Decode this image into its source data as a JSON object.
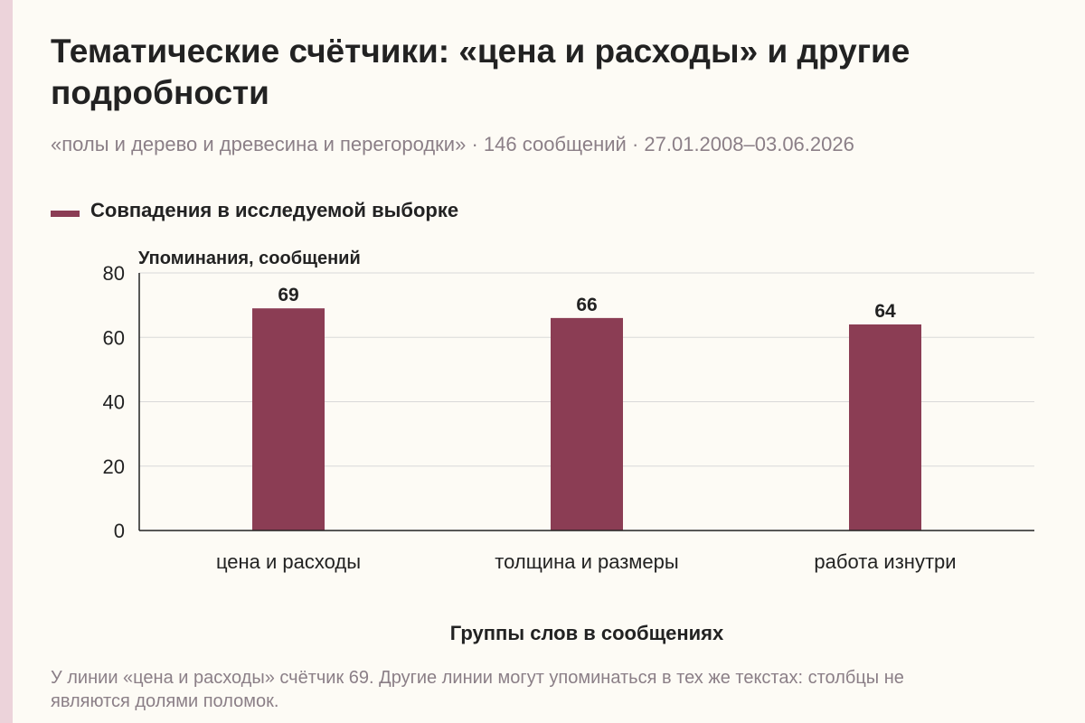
{
  "header": {
    "title": "Тематические счётчики: «цена и расходы» и другие подробности",
    "subtitle": "«полы и дерево и древесина и перегородки» · 146 сообщений · 27.01.2008–03.06.2026"
  },
  "colors": {
    "bar": "#8b3d54",
    "background": "#fdfbf5",
    "stripe": "#ecd3da",
    "grid": "#d9d9d9",
    "axis": "#222222",
    "muted_text": "#8b7f87"
  },
  "chart_data": {
    "type": "bar",
    "categories": [
      "цена и расходы",
      "толщина и размеры",
      "работа изнутри"
    ],
    "series": [
      {
        "name": "Совпадения в исследуемой выборке",
        "values": [
          69,
          66,
          64
        ]
      }
    ],
    "xlabel": "Группы слов в сообщениях",
    "ylabel": "Упоминания, сообщений",
    "ylim": [
      0,
      80
    ],
    "yticks": [
      0,
      20,
      40,
      60,
      80
    ],
    "grid": true,
    "legend_position": "top-left"
  },
  "note": "У линии «цена и расходы» счётчик 69. Другие линии могут упоминаться в тех же текстах: столбцы не являются долями поломок."
}
